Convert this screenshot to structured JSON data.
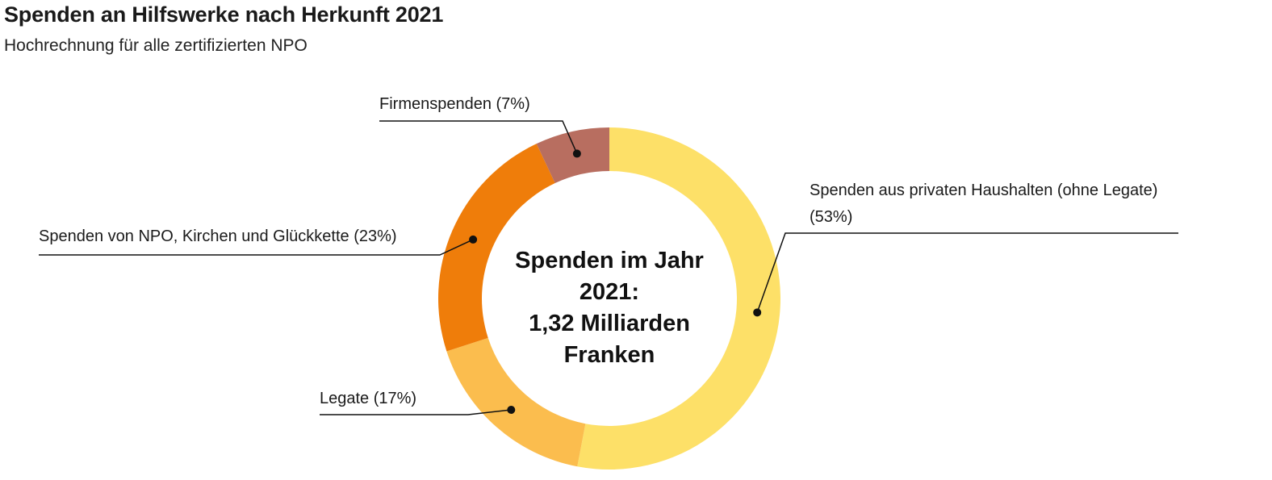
{
  "chart_data": {
    "type": "pie",
    "title": "Spenden an Hilfswerke nach Herkunft 2021",
    "subtitle": "Hochrechnung für alle zertifizierten NPO",
    "center_label": [
      "Spenden im Jahr",
      "2021:",
      "1,32 Milliarden",
      "Franken"
    ],
    "slices": [
      {
        "label_lines": [
          "Spenden aus privaten Haushalten (ohne Legate)",
          "(53%)"
        ],
        "value": 53,
        "color": "#fde068"
      },
      {
        "label_lines": [
          "Legate (17%)"
        ],
        "value": 17,
        "color": "#fbbd4e"
      },
      {
        "label_lines": [
          "Spenden von NPO, Kirchen und Glückkette (23%)"
        ],
        "value": 23,
        "color": "#ef7d0a"
      },
      {
        "label_lines": [
          "Firmenspenden (7%)"
        ],
        "value": 7,
        "color": "#b86e60"
      }
    ]
  }
}
